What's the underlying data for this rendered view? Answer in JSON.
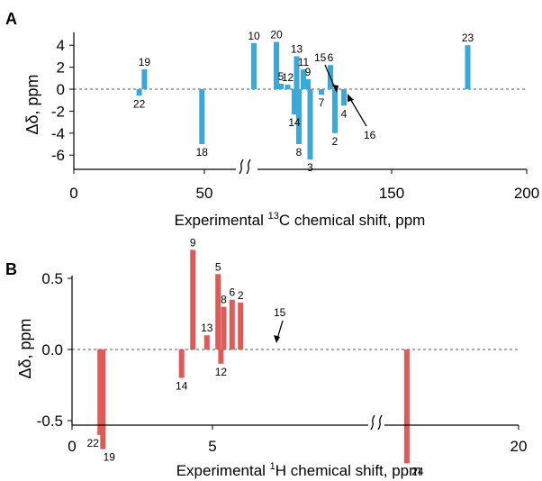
{
  "chart_data": [
    {
      "type": "bar",
      "panel": "A",
      "color": "#3aa8d8",
      "ylabel": "Δδ, ppm",
      "xlabel_prefix": "Experimental ",
      "xlabel_sup": "13",
      "xlabel_suffix": "C chemical shift, ppm",
      "x_ticks": [
        "0",
        "50",
        "150",
        "200"
      ],
      "y_ticks": [
        "4",
        "2",
        "0",
        "-2",
        "-4",
        "-6"
      ],
      "axis_break": "between 50 and 150",
      "points": [
        {
          "label": "22",
          "x": 25,
          "y": -0.6
        },
        {
          "label": "19",
          "x": 27,
          "y": 1.8
        },
        {
          "label": "18",
          "x": 49,
          "y": -5.0
        },
        {
          "label": "10",
          "x": 80,
          "y": 4.2
        },
        {
          "label": "20",
          "x": 90,
          "y": 4.3
        },
        {
          "label": "5",
          "x": 92,
          "y": 0.5
        },
        {
          "label": "12",
          "x": 95,
          "y": 0.4
        },
        {
          "label": "14",
          "x": 98,
          "y": -2.3
        },
        {
          "label": "13",
          "x": 99,
          "y": 3.0
        },
        {
          "label": "8",
          "x": 100,
          "y": -5.0
        },
        {
          "label": "11",
          "x": 102,
          "y": 1.8
        },
        {
          "label": "9",
          "x": 104,
          "y": 0.9
        },
        {
          "label": "3",
          "x": 105,
          "y": -6.4
        },
        {
          "label": "7",
          "x": 110,
          "y": -0.5
        },
        {
          "label": "6",
          "x": 114,
          "y": 2.2
        },
        {
          "label": "2",
          "x": 116,
          "y": -4.0
        },
        {
          "label": "4",
          "x": 120,
          "y": -1.5
        },
        {
          "label": "23",
          "x": 175,
          "y": 4.0
        }
      ],
      "arrows": [
        {
          "label": "15"
        },
        {
          "label": "16"
        }
      ]
    },
    {
      "type": "bar",
      "panel": "B",
      "color": "#e05a5a",
      "ylabel": "Δδ, ppm",
      "xlabel_prefix": "Experimental ",
      "xlabel_sup": "1",
      "xlabel_suffix": "H chemical shift, ppm",
      "x_ticks": [
        "0",
        "5",
        "20"
      ],
      "y_ticks": [
        "0.5",
        "0.0",
        "-0.5"
      ],
      "axis_break": "between 5 and 20",
      "points": [
        {
          "label": "22",
          "x": 1.0,
          "y": -0.6
        },
        {
          "label": "19",
          "x": 1.1,
          "y": -0.7
        },
        {
          "label": "14",
          "x": 3.9,
          "y": -0.2
        },
        {
          "label": "9",
          "x": 4.3,
          "y": 0.7
        },
        {
          "label": "13",
          "x": 4.8,
          "y": 0.1
        },
        {
          "label": "5",
          "x": 5.2,
          "y": 0.53
        },
        {
          "label": "12",
          "x": 5.3,
          "y": -0.1
        },
        {
          "label": "8",
          "x": 5.4,
          "y": 0.3
        },
        {
          "label": "6",
          "x": 5.7,
          "y": 0.35
        },
        {
          "label": "2",
          "x": 6.0,
          "y": 0.33
        },
        {
          "label": "24",
          "x": 18.5,
          "y": -0.8
        }
      ],
      "arrows": [
        {
          "label": "15"
        }
      ]
    }
  ]
}
